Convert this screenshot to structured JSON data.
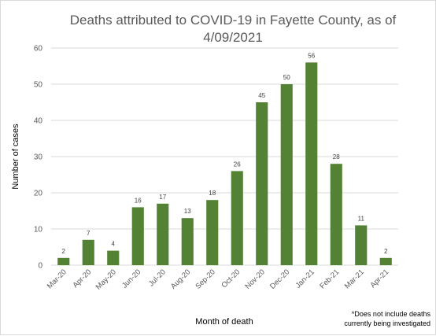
{
  "chart_data": {
    "type": "bar",
    "title": "Deaths attributed to COVID-19 in Fayette County, as of 4/09/2021",
    "xlabel": "Month of death",
    "ylabel": "Number of cases",
    "categories": [
      "Mar-20",
      "Apr-20",
      "May-20",
      "Jun-20",
      "Jul-20",
      "Aug-20",
      "Sep-20",
      "Oct-20",
      "Nov-20",
      "Dec-20",
      "Jan-21",
      "Feb-21",
      "Mar-21",
      "Apr-21"
    ],
    "values": [
      2,
      7,
      4,
      16,
      17,
      13,
      18,
      26,
      45,
      50,
      56,
      28,
      11,
      2
    ],
    "ylim": [
      0,
      60
    ],
    "yticks": [
      0,
      10,
      20,
      30,
      40,
      50,
      60
    ],
    "grid": true,
    "data_labels": true,
    "bar_color": "#548235",
    "grid_color": "#d9d9d9",
    "footnote_line1": "*Does not include deaths",
    "footnote_line2": "currently being investigated"
  }
}
